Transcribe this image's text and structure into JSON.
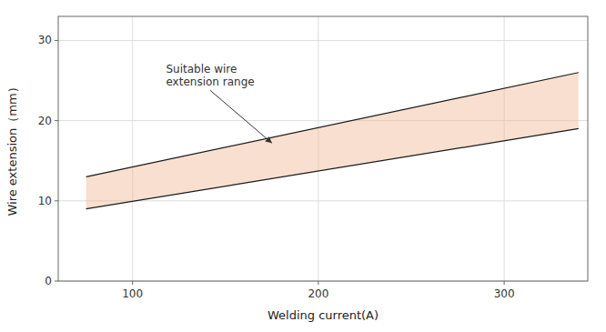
{
  "chart_data": {
    "type": "area",
    "x_label": "Welding current(A)",
    "y_label": "Wire extension（mm）",
    "xlim": [
      60,
      345
    ],
    "ylim": [
      0,
      33
    ],
    "xticks": [
      100,
      200,
      300
    ],
    "yticks": [
      0,
      10,
      20,
      30
    ],
    "grid": true,
    "color": "#f0b896",
    "x": [
      75,
      340
    ],
    "series": [
      {
        "values": [
          13.0,
          26.0
        ],
        "color": "#1a1a1a"
      },
      {
        "values": [
          9.0,
          19.0
        ],
        "color": "#1a1a1a"
      }
    ],
    "annotations": [
      {
        "text": "Suitable wire\nextension range",
        "xy": [
          175,
          17.2
        ],
        "text_xy": [
          118,
          24.0
        ]
      }
    ]
  }
}
